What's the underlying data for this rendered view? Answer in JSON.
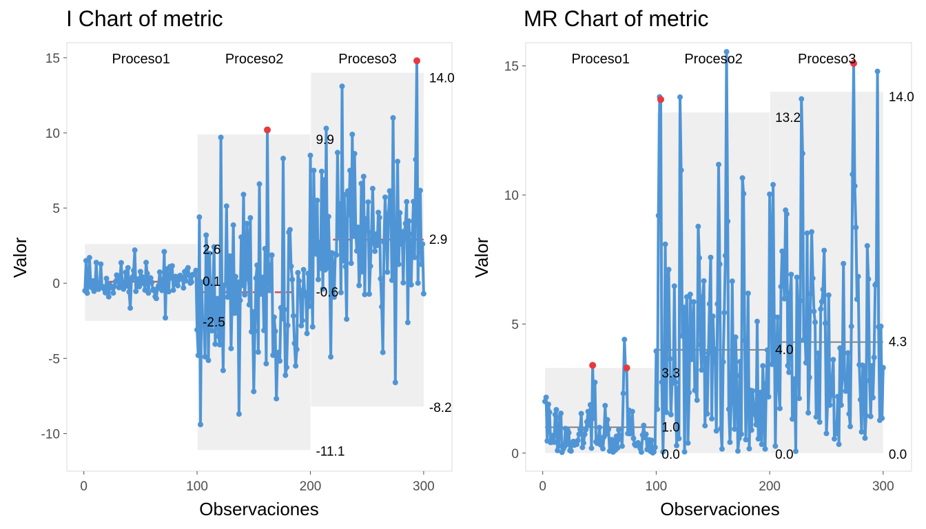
{
  "chart_data": [
    {
      "type": "line",
      "title": "I Chart of metric",
      "xlabel": "Observaciones",
      "ylabel": "Valor",
      "xlim": [
        -15,
        325
      ],
      "ylim": [
        -12.5,
        16
      ],
      "x_ticks": [
        0,
        100,
        200,
        300
      ],
      "x_tick_labels": [
        "0",
        "100",
        "200",
        "300"
      ],
      "y_ticks": [
        15,
        10,
        5,
        0,
        -5,
        -10
      ],
      "y_tick_labels": [
        "15",
        "10",
        "5",
        "0",
        "-5",
        "-10"
      ],
      "line_color": "#4f95d5",
      "center_color": "#e04a44",
      "out_of_control_color": "#e8393f",
      "band_color": "#efefef",
      "phases": [
        {
          "label": "Proceso1",
          "start": 1,
          "end": 100,
          "ucl": 2.6,
          "cl": 0.1,
          "lcl": -2.5,
          "ucl_label": "2.6",
          "cl_label": "0.1",
          "lcl_label": "-2.5",
          "sd": 0.8,
          "seed": 11
        },
        {
          "label": "Proceso2",
          "start": 101,
          "end": 200,
          "ucl": 9.9,
          "cl": -0.6,
          "lcl": -11.1,
          "ucl_label": "9.9",
          "cl_label": "-0.6",
          "lcl_label": "-11.1",
          "sd": 3.4,
          "seed": 23
        },
        {
          "label": "Proceso3",
          "start": 201,
          "end": 300,
          "ucl": 14.0,
          "cl": 2.9,
          "lcl": -8.2,
          "ucl_label": "14.0",
          "cl_label": "2.9",
          "lcl_label": "-8.2",
          "sd": 3.2,
          "seed": 37
        }
      ],
      "overrides": [
        [
          1,
          -0.5
        ],
        [
          2,
          1.5
        ],
        [
          5,
          1.7
        ],
        [
          45,
          2.2
        ],
        [
          71,
          2.1
        ],
        [
          72,
          -2.3
        ],
        [
          76,
          1.1
        ],
        [
          100,
          -3.1
        ],
        [
          101,
          -4.8
        ],
        [
          102,
          4.4
        ],
        [
          103,
          -9.4
        ],
        [
          121,
          9.7
        ],
        [
          123,
          -5.8
        ],
        [
          137,
          -8.7
        ],
        [
          141,
          5.9
        ],
        [
          150,
          -7.2
        ],
        [
          155,
          6.6
        ],
        [
          162,
          10.2
        ],
        [
          172,
          -4.6
        ],
        [
          176,
          8.3
        ],
        [
          179,
          -5.6
        ],
        [
          187,
          -5.5
        ],
        [
          200,
          8.5
        ],
        [
          203,
          7.5
        ],
        [
          214,
          10.3
        ],
        [
          218,
          -4.9
        ],
        [
          228,
          13.1
        ],
        [
          237,
          9.9
        ],
        [
          247,
          7.1
        ],
        [
          264,
          -4.6
        ],
        [
          273,
          11.0
        ],
        [
          275,
          -6.6
        ],
        [
          277,
          8.1
        ],
        [
          294,
          14.8
        ],
        [
          300,
          -0.7
        ]
      ],
      "out_of_control": [
        [
          162,
          10.2
        ],
        [
          294,
          14.8
        ]
      ]
    },
    {
      "type": "line",
      "title": "MR Chart of metric",
      "xlabel": "Observaciones",
      "ylabel": "Valor",
      "xlim": [
        -15,
        325
      ],
      "ylim": [
        -0.7,
        15.9
      ],
      "x_ticks": [
        0,
        100,
        200,
        300
      ],
      "x_tick_labels": [
        "0",
        "100",
        "200",
        "300"
      ],
      "y_ticks": [
        15,
        10,
        5,
        0
      ],
      "y_tick_labels": [
        "15",
        "10",
        "5",
        "0"
      ],
      "line_color": "#4f95d5",
      "center_color": "#808080",
      "out_of_control_color": "#e8393f",
      "band_color": "#efefef",
      "phases": [
        {
          "label": "Proceso1",
          "start": 2,
          "end": 100,
          "ucl": 3.3,
          "cl": 1.0,
          "lcl": 0.0,
          "ucl_label": "3.3",
          "cl_label": "1.0",
          "lcl_label": "0.0"
        },
        {
          "label": "Proceso2",
          "start": 101,
          "end": 200,
          "ucl": 13.2,
          "cl": 4.0,
          "lcl": 0.0,
          "ucl_label": "13.2",
          "cl_label": "4.0",
          "lcl_label": "0.0"
        },
        {
          "label": "Proceso3",
          "start": 201,
          "end": 300,
          "ucl": 14.0,
          "cl": 4.3,
          "lcl": 0.0,
          "ucl_label": "14.0",
          "cl_label": "4.3",
          "lcl_label": "0.0"
        }
      ],
      "derived_from": "absolute difference of consecutive I-chart values",
      "out_of_control": [
        [
          44,
          3.4
        ],
        [
          74,
          3.3
        ],
        [
          104,
          13.7
        ],
        [
          274,
          15.1
        ]
      ]
    }
  ]
}
